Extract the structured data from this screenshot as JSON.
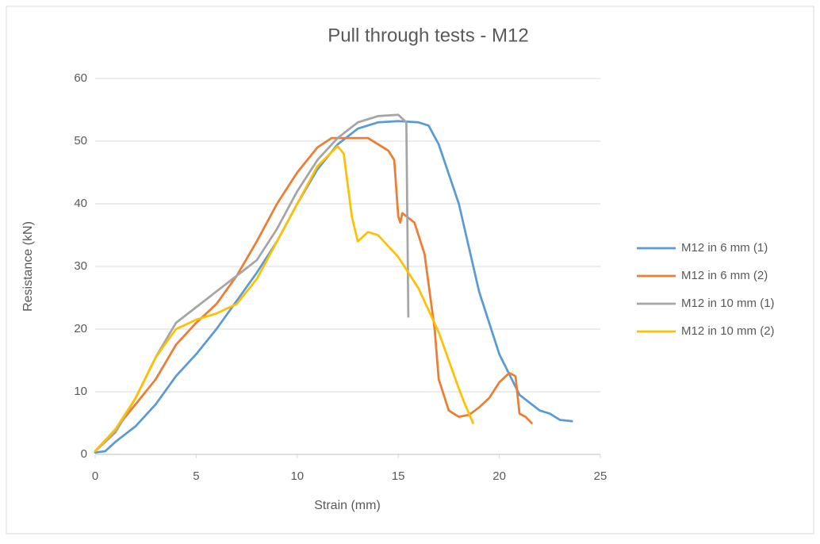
{
  "chart_data": {
    "type": "line",
    "title": "Pull through tests - M12",
    "x_label": "Strain (mm)",
    "y_label": "Resistance (kN)",
    "xlim": [
      0,
      25
    ],
    "xticks": [
      0,
      5,
      10,
      15,
      20,
      25
    ],
    "ylim": [
      0,
      60
    ],
    "yticks": [
      0,
      10,
      20,
      30,
      40,
      50,
      60
    ],
    "grid": true,
    "legend": "right",
    "series": [
      {
        "name": "M12 in 6 mm (1)",
        "color": "#5b9bd5",
        "x": [
          0,
          0.5,
          1,
          2,
          3,
          4,
          5,
          6,
          7,
          8,
          9,
          10,
          11,
          12,
          13,
          14,
          15,
          16,
          16.5,
          17,
          18,
          19,
          20,
          21,
          22,
          22.5,
          23,
          23.6
        ],
        "values": [
          0.3,
          0.5,
          2,
          4.5,
          8,
          12.5,
          16,
          20,
          24.5,
          29,
          34,
          40,
          45.5,
          49.5,
          52,
          53,
          53.2,
          53,
          52.5,
          49.5,
          40,
          26,
          16,
          9.5,
          7,
          6.5,
          5.5,
          5.3
        ]
      },
      {
        "name": "M12 in 6 mm (2)",
        "color": "#ed7d31",
        "x": [
          0,
          1,
          2,
          3,
          4,
          5,
          6,
          7,
          8,
          9,
          10,
          11,
          11.7,
          12.5,
          13.5,
          14.5,
          14.8,
          15,
          15.1,
          15.2,
          15.8,
          16.3,
          16.8,
          17,
          17.5,
          18,
          18.5,
          19,
          19.5,
          20,
          20.5,
          20.8,
          21,
          21.3,
          21.6
        ],
        "values": [
          0.5,
          4,
          8,
          12,
          17.5,
          21,
          24,
          28.5,
          34,
          40,
          45,
          49,
          50.5,
          50.5,
          50.5,
          48.5,
          47,
          38,
          37,
          38.5,
          37,
          32,
          20,
          12,
          7,
          6,
          6.3,
          7.5,
          9,
          11.5,
          13,
          12.5,
          6.5,
          6,
          5
        ]
      },
      {
        "name": "M12 in 10 mm (1)",
        "color": "#a5a5a5",
        "x": [
          0,
          1,
          2,
          3,
          4,
          5,
          6,
          7,
          8,
          9,
          10,
          11,
          12,
          13,
          14,
          15,
          15.4,
          15.5
        ],
        "values": [
          0.5,
          3.5,
          9,
          15.5,
          21,
          23.5,
          26,
          28.5,
          31,
          36,
          42,
          47,
          50.5,
          53,
          54,
          54.2,
          53,
          22
        ]
      },
      {
        "name": "M12 in 10 mm (2)",
        "color": "#ffc000",
        "x": [
          0,
          1,
          2,
          3,
          4,
          5,
          6,
          7,
          8,
          9,
          10,
          11,
          12,
          12.3,
          12.7,
          13,
          13.5,
          14,
          15,
          16,
          17,
          18,
          18.3,
          18.7
        ],
        "values": [
          0.5,
          4,
          9,
          15.5,
          20,
          21.5,
          22.5,
          24,
          28,
          34,
          40,
          46,
          49.2,
          48,
          38,
          34,
          35.5,
          35,
          31.5,
          26.5,
          19.5,
          10.5,
          8,
          5
        ]
      }
    ]
  }
}
